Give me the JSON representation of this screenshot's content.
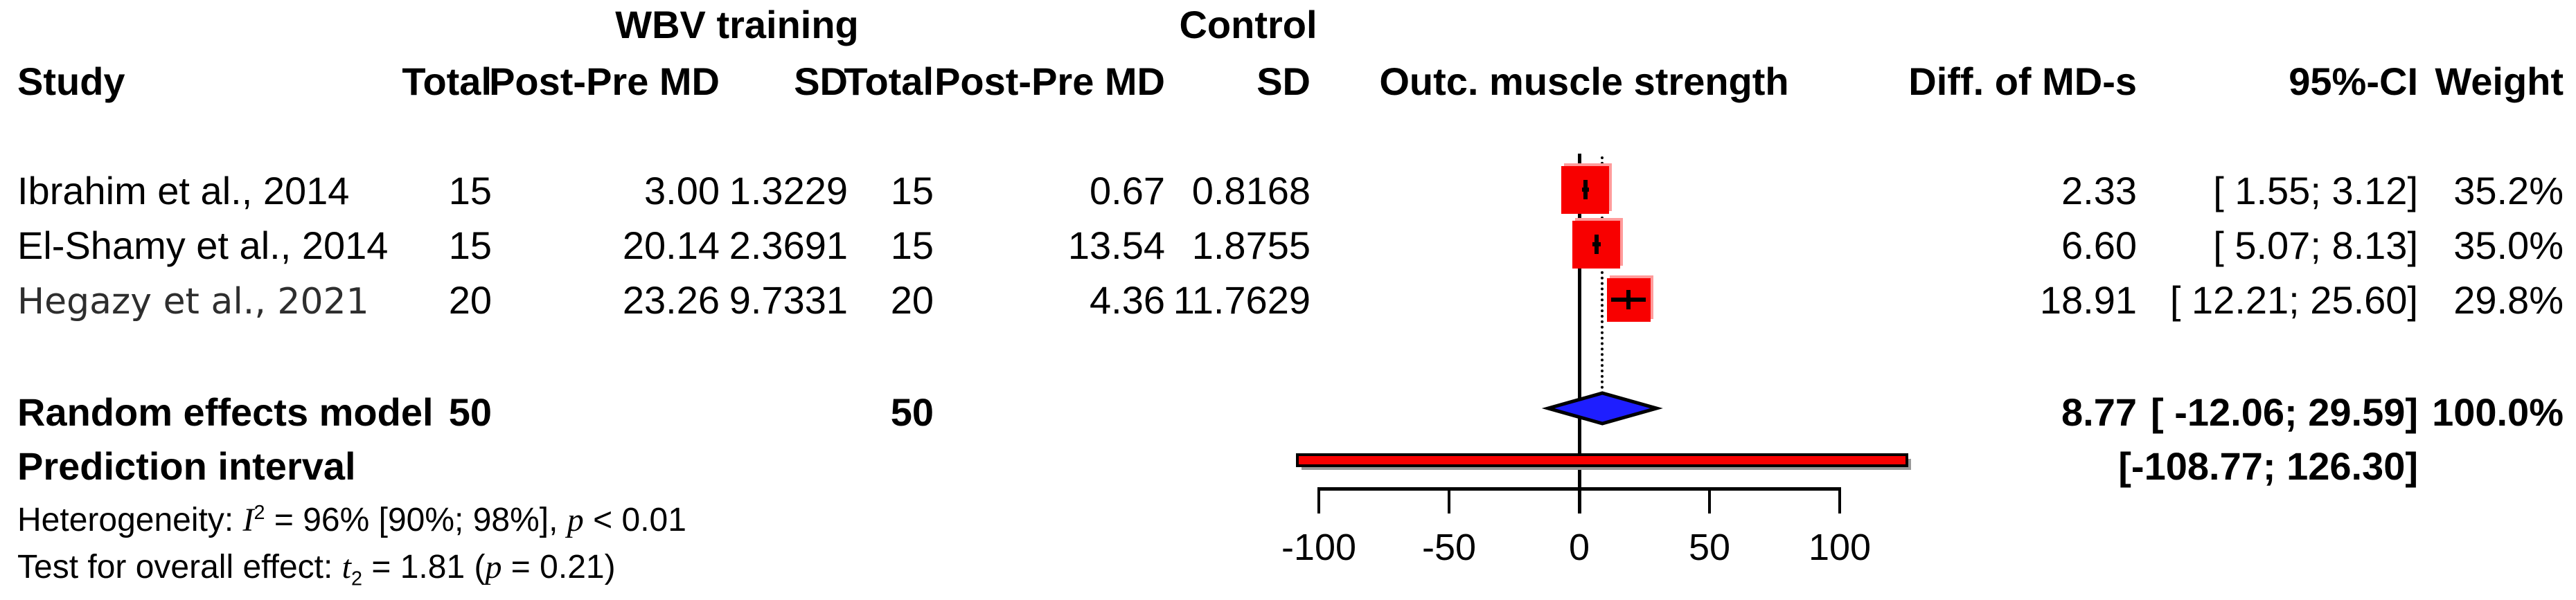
{
  "groups": {
    "wbv": "WBV training",
    "control": "Control"
  },
  "columns": {
    "study": "Study",
    "total_wbv": "Total",
    "md_wbv": "Post-Pre MD",
    "sd_wbv": "SD",
    "total_ctrl": "Total",
    "md_ctrl": "Post-Pre MD",
    "sd_ctrl": "SD",
    "outcome": "Outc. muscle strength",
    "diff": "Diff. of MD-s",
    "ci": "95%-CI",
    "weight": "Weight"
  },
  "rows": [
    {
      "study": "Ibrahim et al., 2014",
      "wbv_total": "15",
      "wbv_md": "3.00",
      "wbv_sd": "1.3229",
      "ctrl_total": "15",
      "ctrl_md": "0.67",
      "ctrl_sd": "0.8168",
      "diff": "2.33",
      "ci": "[ 1.55; 3.12]",
      "weight": "35.2%"
    },
    {
      "study": "El-Shamy et al., 2014",
      "wbv_total": "15",
      "wbv_md": "20.14",
      "wbv_sd": "2.3691",
      "ctrl_total": "15",
      "ctrl_md": "13.54",
      "ctrl_sd": "1.8755",
      "diff": "6.60",
      "ci": "[ 5.07; 8.13]",
      "weight": "35.0%"
    },
    {
      "study": "Hegazy et al., 2021",
      "wbv_total": "20",
      "wbv_md": "23.26",
      "wbv_sd": "9.7331",
      "ctrl_total": "20",
      "ctrl_md": "4.36",
      "ctrl_sd": "11.7629",
      "diff": "18.91",
      "ci": "[ 12.21; 25.60]",
      "weight": "29.8%"
    }
  ],
  "summary_row": {
    "label": "Random effects model",
    "wbv_total": "50",
    "ctrl_total": "50",
    "diff": "8.77",
    "ci": "[ -12.06; 29.59]",
    "weight": "100.0%"
  },
  "prediction_row": {
    "label": "Prediction interval",
    "ci": "[-108.77; 126.30]"
  },
  "footer": {
    "het_prefix": "Heterogeneity: ",
    "het_stat": "I",
    "het_sup": "2",
    "het_mid": " = 96% [90%; 98%], ",
    "het_p": "p",
    "het_tail": " < 0.01",
    "test_prefix": "Test for overall effect: ",
    "test_stat": "t",
    "test_sub": "2",
    "test_mid": " = 1.81 (",
    "test_p": "p",
    "test_tail": " = 0.21)"
  },
  "chart_data": {
    "type": "forest",
    "title": "Outc. muscle strength",
    "xlim": [
      -100,
      100
    ],
    "ticks": [
      -100,
      -50,
      0,
      50,
      100
    ],
    "studies": [
      {
        "name": "Ibrahim et al., 2014",
        "estimate": 2.33,
        "ci_low": 1.55,
        "ci_high": 3.12,
        "weight_pct": 35.2
      },
      {
        "name": "El-Shamy et al., 2014",
        "estimate": 6.6,
        "ci_low": 5.07,
        "ci_high": 8.13,
        "weight_pct": 35.0
      },
      {
        "name": "Hegazy et al., 2021",
        "estimate": 18.91,
        "ci_low": 12.21,
        "ci_high": 25.6,
        "weight_pct": 29.8
      }
    ],
    "summary": {
      "name": "Random effects model",
      "estimate": 8.77,
      "ci_low": -12.06,
      "ci_high": 29.59,
      "weight_pct": 100.0
    },
    "prediction_interval": {
      "ci_low": -108.77,
      "ci_high": 126.3
    },
    "heterogeneity": {
      "I2": "96%",
      "I2_ci": "[90%; 98%]",
      "p": "< 0.01"
    },
    "overall_effect": {
      "stat": "t2",
      "value": 1.81,
      "p": 0.21
    },
    "colors": {
      "square": "#f80000",
      "square_highlight": "#ff9b9b",
      "diamond": "#1e1eff",
      "prediction_bar": "#f80000",
      "bar_shadow": "#999999",
      "line": "#000000"
    }
  }
}
